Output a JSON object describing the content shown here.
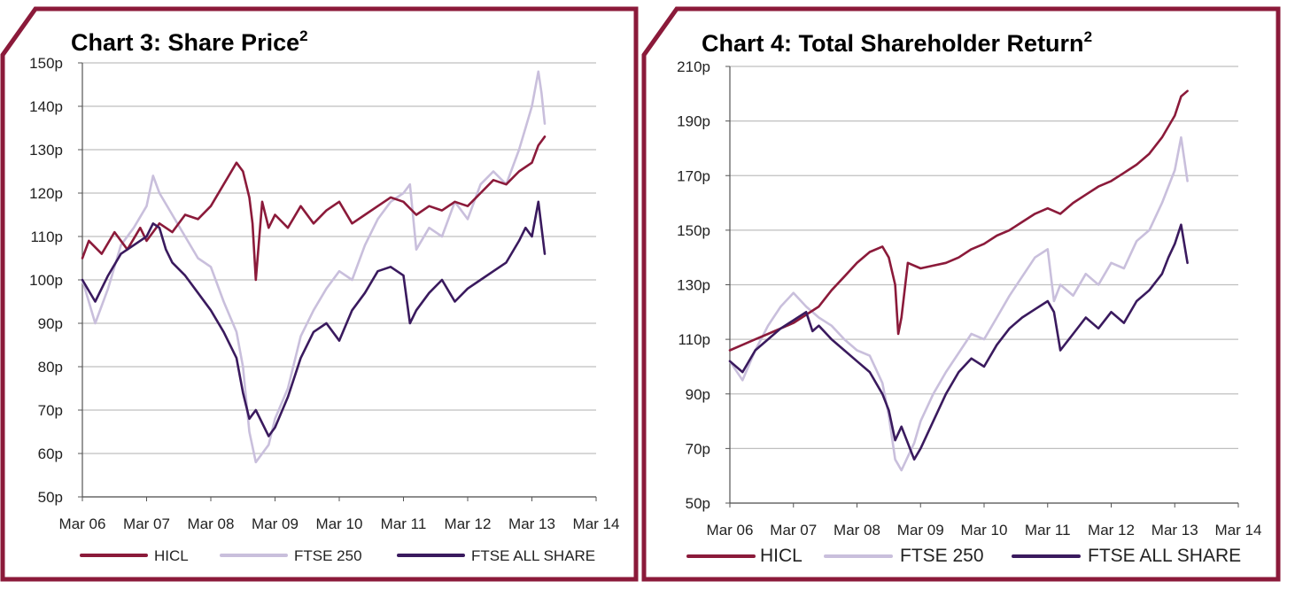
{
  "colors": {
    "border": "#8b1a3a",
    "hicl": "#8b1a3a",
    "ftse250": "#c9bfdc",
    "ftseall": "#3a1a5e",
    "grid": "#bfbfbf"
  },
  "chart_data": [
    {
      "type": "line",
      "title": "Chart 3:  Share Price",
      "title_sup": "2",
      "ylim": [
        50,
        150
      ],
      "yticks": [
        50,
        60,
        70,
        80,
        90,
        100,
        110,
        120,
        130,
        140,
        150
      ],
      "ytick_labels": [
        "50p",
        "60p",
        "70p",
        "80p",
        "90p",
        "100p",
        "110p",
        "120p",
        "130p",
        "140p",
        "150p"
      ],
      "xticks": [
        "Mar 06",
        "Mar 07",
        "Mar 08",
        "Mar 09",
        "Mar 10",
        "Mar 11",
        "Mar 12",
        "Mar 13",
        "Mar 14"
      ],
      "xlim": [
        0,
        8
      ],
      "series": [
        {
          "name": "HICL",
          "color": "#8b1a3a",
          "x": [
            0,
            0.1,
            0.3,
            0.5,
            0.7,
            0.9,
            1.0,
            1.2,
            1.4,
            1.6,
            1.8,
            2.0,
            2.2,
            2.4,
            2.5,
            2.6,
            2.65,
            2.7,
            2.8,
            2.9,
            3.0,
            3.2,
            3.4,
            3.6,
            3.8,
            4.0,
            4.2,
            4.4,
            4.6,
            4.8,
            5.0,
            5.2,
            5.4,
            5.6,
            5.8,
            6.0,
            6.2,
            6.4,
            6.6,
            6.8,
            7.0,
            7.1,
            7.2
          ],
          "values": [
            105,
            109,
            106,
            111,
            107,
            112,
            109,
            113,
            111,
            115,
            114,
            117,
            122,
            127,
            125,
            119,
            113,
            100,
            118,
            112,
            115,
            112,
            117,
            113,
            116,
            118,
            113,
            115,
            117,
            119,
            118,
            115,
            117,
            116,
            118,
            117,
            120,
            123,
            122,
            125,
            127,
            131,
            133
          ]
        },
        {
          "name": "FTSE 250",
          "color": "#c9bfdc",
          "x": [
            0,
            0.2,
            0.4,
            0.6,
            0.8,
            1.0,
            1.1,
            1.2,
            1.4,
            1.6,
            1.8,
            2.0,
            2.2,
            2.4,
            2.5,
            2.6,
            2.7,
            2.9,
            3.0,
            3.2,
            3.4,
            3.6,
            3.8,
            4.0,
            4.2,
            4.4,
            4.6,
            4.8,
            5.0,
            5.1,
            5.2,
            5.4,
            5.6,
            5.8,
            6.0,
            6.2,
            6.4,
            6.6,
            6.8,
            6.9,
            7.0,
            7.1,
            7.15,
            7.2
          ],
          "values": [
            100,
            90,
            98,
            108,
            112,
            117,
            124,
            120,
            115,
            110,
            105,
            103,
            95,
            88,
            80,
            65,
            58,
            62,
            68,
            75,
            87,
            93,
            98,
            102,
            100,
            108,
            114,
            118,
            120,
            122,
            107,
            112,
            110,
            118,
            114,
            122,
            125,
            122,
            130,
            135,
            140,
            148,
            143,
            136
          ]
        },
        {
          "name": "FTSE ALL SHARE",
          "color": "#3a1a5e",
          "x": [
            0,
            0.2,
            0.4,
            0.6,
            0.8,
            1.0,
            1.1,
            1.2,
            1.3,
            1.4,
            1.6,
            1.8,
            2.0,
            2.2,
            2.4,
            2.5,
            2.6,
            2.7,
            2.9,
            3.0,
            3.2,
            3.4,
            3.6,
            3.8,
            4.0,
            4.2,
            4.4,
            4.6,
            4.8,
            5.0,
            5.1,
            5.2,
            5.4,
            5.6,
            5.8,
            6.0,
            6.2,
            6.4,
            6.6,
            6.8,
            6.9,
            7.0,
            7.1,
            7.15,
            7.2
          ],
          "values": [
            100,
            95,
            101,
            106,
            108,
            110,
            113,
            112,
            107,
            104,
            101,
            97,
            93,
            88,
            82,
            74,
            68,
            70,
            64,
            66,
            73,
            82,
            88,
            90,
            86,
            93,
            97,
            102,
            103,
            101,
            90,
            93,
            97,
            100,
            95,
            98,
            100,
            102,
            104,
            109,
            112,
            110,
            118,
            112,
            106
          ]
        }
      ]
    },
    {
      "type": "line",
      "title": "Chart 4: Total Shareholder Return",
      "title_sup": "2",
      "ylim": [
        50,
        210
      ],
      "yticks": [
        50,
        70,
        90,
        110,
        130,
        150,
        170,
        190,
        210
      ],
      "ytick_labels": [
        "50p",
        "70p",
        "90p",
        "110p",
        "130p",
        "150p",
        "170p",
        "190p",
        "210p"
      ],
      "xticks": [
        "Mar 06",
        "Mar 07",
        "Mar 08",
        "Mar 09",
        "Mar 10",
        "Mar 11",
        "Mar 12",
        "Mar 13",
        "Mar 14"
      ],
      "xlim": [
        0,
        8
      ],
      "series": [
        {
          "name": "HICL",
          "color": "#8b1a3a",
          "x": [
            0,
            0.2,
            0.4,
            0.6,
            0.8,
            1.0,
            1.2,
            1.4,
            1.6,
            1.8,
            2.0,
            2.2,
            2.4,
            2.5,
            2.6,
            2.65,
            2.7,
            2.8,
            3.0,
            3.2,
            3.4,
            3.6,
            3.8,
            4.0,
            4.2,
            4.4,
            4.6,
            4.8,
            5.0,
            5.2,
            5.4,
            5.6,
            5.8,
            6.0,
            6.2,
            6.4,
            6.6,
            6.8,
            7.0,
            7.1,
            7.2
          ],
          "values": [
            106,
            108,
            110,
            112,
            114,
            116,
            119,
            122,
            128,
            133,
            138,
            142,
            144,
            140,
            130,
            112,
            118,
            138,
            136,
            137,
            138,
            140,
            143,
            145,
            148,
            150,
            153,
            156,
            158,
            156,
            160,
            163,
            166,
            168,
            171,
            174,
            178,
            184,
            192,
            199,
            201
          ]
        },
        {
          "name": "FTSE 250",
          "color": "#c9bfdc",
          "x": [
            0,
            0.2,
            0.4,
            0.6,
            0.8,
            1.0,
            1.2,
            1.4,
            1.6,
            1.8,
            2.0,
            2.2,
            2.4,
            2.5,
            2.6,
            2.7,
            2.9,
            3.0,
            3.2,
            3.4,
            3.6,
            3.8,
            4.0,
            4.2,
            4.4,
            4.6,
            4.8,
            5.0,
            5.1,
            5.2,
            5.4,
            5.6,
            5.8,
            6.0,
            6.2,
            6.4,
            6.6,
            6.8,
            7.0,
            7.1,
            7.2
          ],
          "values": [
            102,
            95,
            106,
            115,
            122,
            127,
            122,
            118,
            115,
            110,
            106,
            104,
            94,
            82,
            66,
            62,
            72,
            80,
            90,
            98,
            105,
            112,
            110,
            118,
            126,
            133,
            140,
            143,
            124,
            130,
            126,
            134,
            130,
            138,
            136,
            146,
            150,
            160,
            172,
            184,
            168
          ]
        },
        {
          "name": "FTSE ALL SHARE",
          "color": "#3a1a5e",
          "x": [
            0,
            0.2,
            0.4,
            0.6,
            0.8,
            1.0,
            1.2,
            1.3,
            1.4,
            1.6,
            1.8,
            2.0,
            2.2,
            2.4,
            2.5,
            2.6,
            2.7,
            2.9,
            3.0,
            3.2,
            3.4,
            3.6,
            3.8,
            4.0,
            4.2,
            4.4,
            4.6,
            4.8,
            5.0,
            5.1,
            5.2,
            5.4,
            5.6,
            5.8,
            6.0,
            6.2,
            6.4,
            6.6,
            6.8,
            6.9,
            7.0,
            7.1,
            7.15,
            7.2
          ],
          "values": [
            102,
            98,
            106,
            110,
            114,
            117,
            120,
            113,
            115,
            110,
            106,
            102,
            98,
            90,
            84,
            73,
            78,
            66,
            70,
            80,
            90,
            98,
            103,
            100,
            108,
            114,
            118,
            121,
            124,
            120,
            106,
            112,
            118,
            114,
            120,
            116,
            124,
            128,
            134,
            140,
            145,
            152,
            145,
            138
          ]
        }
      ]
    }
  ]
}
